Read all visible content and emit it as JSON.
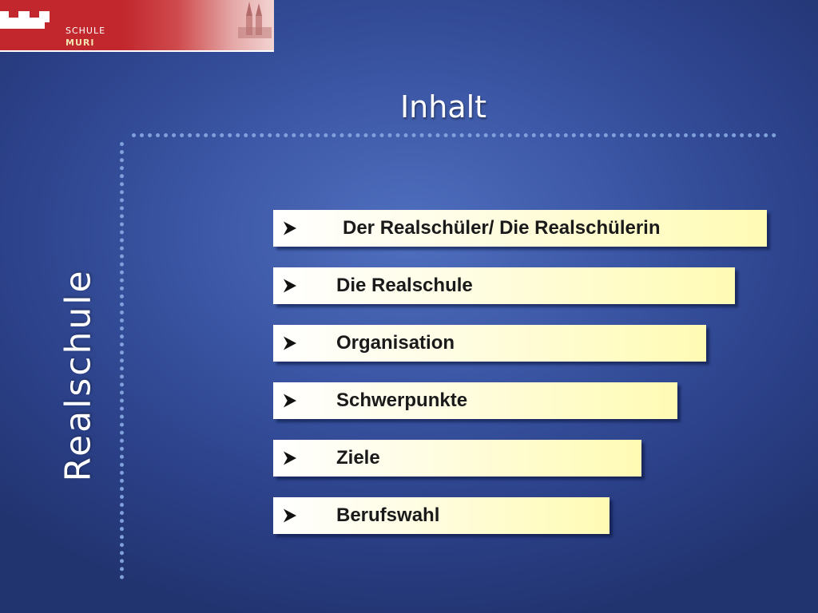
{
  "logo": {
    "line1": "SCHULE",
    "line2": "MURI",
    "brand_color": "#c1272d"
  },
  "title": "Inhalt",
  "side_label": "Realschule",
  "items": [
    {
      "label": "Der Realschüler/ Die Realschülerin",
      "icon": "arrow-bullet-icon"
    },
    {
      "label": "Die Realschule",
      "icon": "arrow-bullet-icon"
    },
    {
      "label": "Organisation",
      "icon": "arrow-bullet-icon"
    },
    {
      "label": "Schwerpunkte",
      "icon": "arrow-bullet-icon"
    },
    {
      "label": "Ziele",
      "icon": "arrow-bullet-icon"
    },
    {
      "label": "Berufswahl",
      "icon": "arrow-bullet-icon"
    }
  ],
  "colors": {
    "background": "#3a55a3",
    "item_fill": "#fffbb4",
    "dotted_line": "#7fa0db"
  }
}
